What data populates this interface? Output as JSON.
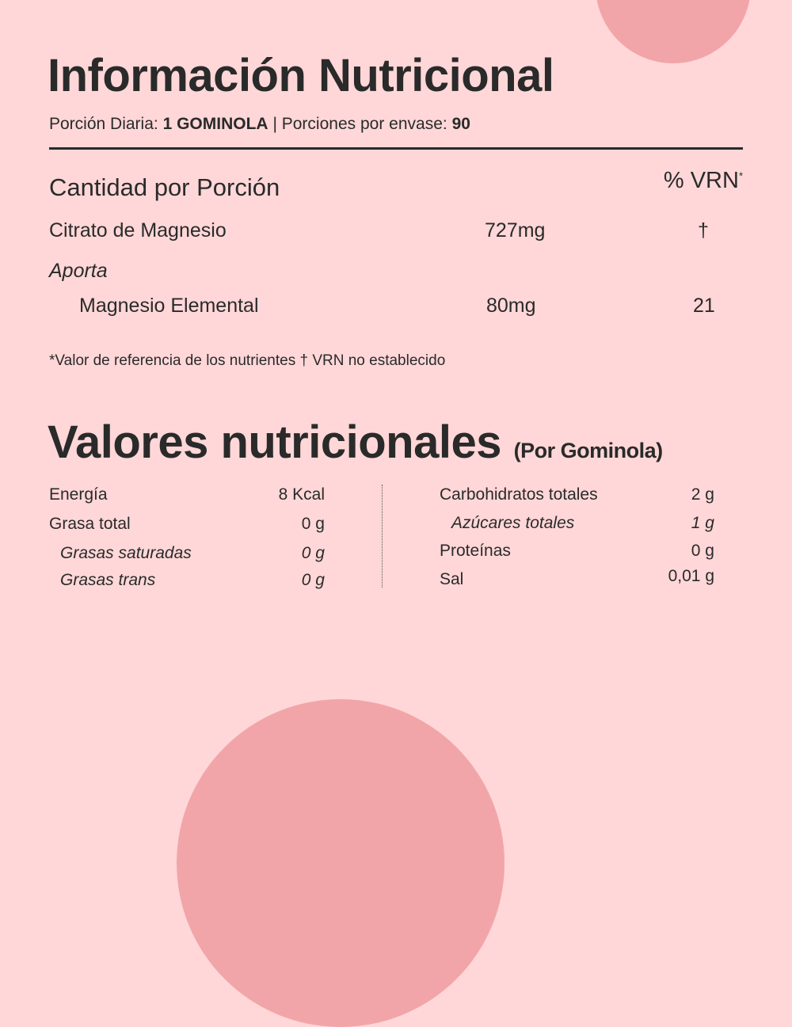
{
  "colors": {
    "background": "#ffd7d8",
    "accent": "#f2a5a8",
    "text": "#2a2a2a"
  },
  "title": "Información Nutricional",
  "serving": {
    "daily_label": "Porción Diaria:",
    "daily_value": "1 GOMINOLA",
    "separator": "|",
    "per_pack_label": "Porciones por envase:",
    "per_pack_value": "90"
  },
  "amount": {
    "heading": "Cantidad por Porción",
    "vrn_heading": "% VRN",
    "vrn_mark": "*",
    "rows": [
      {
        "name": "Citrato de Magnesio",
        "amount": "727mg",
        "vrn": "†"
      },
      {
        "name": "Aporta"
      },
      {
        "name": "Magnesio Elemental",
        "amount": "80mg",
        "vrn": "21"
      }
    ],
    "footnote": "*Valor de referencia de los nutrientes † VRN no establecido"
  },
  "values": {
    "heading": "Valores nutricionales",
    "subheading": "(Por Gominola)",
    "left": [
      {
        "name": "Energía",
        "value": "8 Kcal"
      },
      {
        "name": "Grasa total",
        "value": "0 g"
      },
      {
        "name": "Grasas saturadas",
        "value": "0 g"
      },
      {
        "name": "Grasas trans",
        "value": "0 g"
      }
    ],
    "right": [
      {
        "name": "Carbohidratos totales",
        "value": "2 g"
      },
      {
        "name": "Azúcares totales",
        "value": "1 g"
      },
      {
        "name": "Proteínas",
        "value": "0 g"
      },
      {
        "name": "Sal",
        "value": "0,01 g"
      }
    ]
  }
}
